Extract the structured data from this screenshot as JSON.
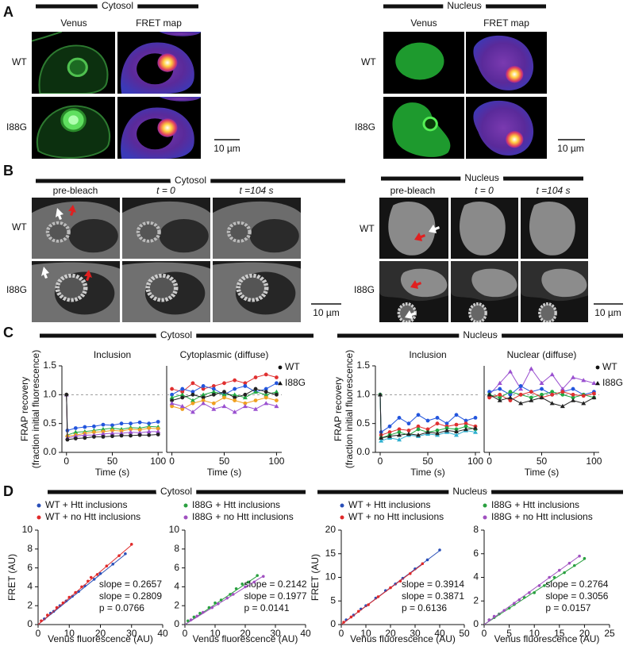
{
  "panel_labels": [
    "A",
    "B",
    "C",
    "D"
  ],
  "panel_a": {
    "cytosol": {
      "title": "Cytosol",
      "columns": [
        "Venus",
        "FRET map"
      ],
      "rows": [
        "WT",
        "I88G"
      ],
      "scale_bar": "10 µm"
    },
    "nucleus": {
      "title": "Nucleus",
      "columns": [
        "Venus",
        "FRET map"
      ],
      "rows": [
        "WT",
        "I88G"
      ],
      "scale_bar": "10 µm"
    }
  },
  "panel_b": {
    "cytosol": {
      "title": "Cytosol",
      "columns": [
        "pre-bleach",
        "t = 0",
        "t =104 s"
      ],
      "rows": [
        "WT",
        "I88G"
      ],
      "scale_bar": "10 µm"
    },
    "nucleus": {
      "title": "Nucleus",
      "columns": [
        "pre-bleach",
        "t = 0",
        "t =104 s"
      ],
      "rows": [
        "WT",
        "I88G"
      ],
      "scale_bar": "10 µm"
    }
  },
  "panel_c": {
    "cytosol_title": "Cytosol",
    "nucleus_title": "Nucleus"
  },
  "panel_d": {
    "cytosol_title": "Cytosol",
    "nucleus_title": "Nucleus"
  },
  "chart_data": [
    {
      "type": "line",
      "title": "Inclusion",
      "xlabel": "Time (s)",
      "ylabel": [
        "FRAP recovery",
        "(fraction initial fluorescence)"
      ],
      "x": [
        0,
        1,
        10,
        20,
        30,
        40,
        50,
        60,
        70,
        80,
        90,
        100
      ],
      "xlim": [
        -5,
        105
      ],
      "xticks": [
        0,
        50,
        100
      ],
      "ylim": [
        0,
        1.5
      ],
      "yticks": [
        {
          "value": 0,
          "label": "0.0"
        },
        {
          "value": 0.5,
          "label": "0.5"
        },
        {
          "value": 1,
          "label": "1.0"
        },
        {
          "value": 1.5,
          "label": "1.5"
        }
      ],
      "reference_line": 1,
      "series": [
        {
          "color": "#2255dd",
          "marker": "circle",
          "values": [
            1.0,
            0.38,
            0.42,
            0.44,
            0.45,
            0.48,
            0.47,
            0.5,
            0.5,
            0.52,
            0.5,
            0.53
          ]
        },
        {
          "color": "#22aa44",
          "marker": "triangle",
          "values": [
            1.0,
            0.3,
            0.35,
            0.36,
            0.38,
            0.4,
            0.42,
            0.4,
            0.43,
            0.42,
            0.45,
            0.44
          ]
        },
        {
          "color": "#f0a020",
          "marker": "circle",
          "values": [
            1.0,
            0.28,
            0.3,
            0.33,
            0.35,
            0.36,
            0.38,
            0.37,
            0.4,
            0.39,
            0.42,
            0.41
          ]
        },
        {
          "color": "#9a50d0",
          "marker": "triangle",
          "values": [
            1.0,
            0.25,
            0.28,
            0.3,
            0.3,
            0.32,
            0.33,
            0.33,
            0.35,
            0.34,
            0.36,
            0.36
          ]
        },
        {
          "color": "#222222",
          "marker": "circle",
          "values": [
            1.0,
            0.22,
            0.24,
            0.25,
            0.27,
            0.27,
            0.28,
            0.29,
            0.29,
            0.3,
            0.3,
            0.31
          ]
        }
      ]
    },
    {
      "type": "line",
      "title": "Cytoplasmic (diffuse)",
      "xlabel": "Time (s)",
      "x": [
        0,
        10,
        20,
        30,
        40,
        50,
        60,
        70,
        80,
        90,
        100
      ],
      "xlim": [
        -5,
        105
      ],
      "xticks": [
        0,
        50,
        100
      ],
      "ylim": [
        0,
        1.5
      ],
      "reference_line": 1,
      "marker_legend": [
        {
          "marker": "circle",
          "label": "WT"
        },
        {
          "marker": "triangle",
          "label": "I88G"
        }
      ],
      "series": [
        {
          "color": "#e03030",
          "marker": "circle",
          "values": [
            1.1,
            1.05,
            1.2,
            1.1,
            1.15,
            1.2,
            1.25,
            1.2,
            1.3,
            1.35,
            1.3
          ]
        },
        {
          "color": "#2255dd",
          "marker": "circle",
          "values": [
            1.0,
            1.1,
            1.05,
            1.15,
            1.1,
            1.0,
            1.1,
            1.15,
            1.05,
            1.1,
            1.2
          ]
        },
        {
          "color": "#22aa44",
          "marker": "triangle",
          "values": [
            0.95,
            1.0,
            0.9,
            1.0,
            1.05,
            1.0,
            1.0,
            0.95,
            1.05,
            1.0,
            1.05
          ]
        },
        {
          "color": "#222222",
          "marker": "circle",
          "values": [
            0.9,
            0.95,
            1.0,
            0.95,
            1.0,
            1.05,
            0.95,
            1.0,
            1.1,
            1.05,
            1.0
          ]
        },
        {
          "color": "#f0a020",
          "marker": "circle",
          "values": [
            0.8,
            0.75,
            0.85,
            0.9,
            0.85,
            0.95,
            0.9,
            0.85,
            0.9,
            0.95,
            0.9
          ]
        },
        {
          "color": "#9a50d0",
          "marker": "triangle",
          "values": [
            0.85,
            0.8,
            0.7,
            0.85,
            0.75,
            0.8,
            0.7,
            0.8,
            0.75,
            0.85,
            0.8
          ]
        }
      ]
    },
    {
      "type": "line",
      "title": "Inclusion",
      "xlabel": "Time (s)",
      "ylabel": [
        "FRAP recovery",
        "(fraction initial fluorescence)"
      ],
      "x": [
        0,
        1,
        10,
        20,
        30,
        40,
        50,
        60,
        70,
        80,
        90,
        100
      ],
      "xlim": [
        -5,
        105
      ],
      "xticks": [
        0,
        50,
        100
      ],
      "ylim": [
        0,
        1.5
      ],
      "yticks": [
        {
          "value": 0,
          "label": "0.0"
        },
        {
          "value": 0.5,
          "label": "0.5"
        },
        {
          "value": 1,
          "label": "1.0"
        },
        {
          "value": 1.5,
          "label": "1.5"
        }
      ],
      "reference_line": 1,
      "series": [
        {
          "color": "#2255dd",
          "marker": "circle",
          "values": [
            1.0,
            0.35,
            0.45,
            0.6,
            0.5,
            0.65,
            0.55,
            0.6,
            0.5,
            0.65,
            0.55,
            0.6
          ]
        },
        {
          "color": "#e03030",
          "marker": "circle",
          "values": [
            1.0,
            0.3,
            0.35,
            0.4,
            0.38,
            0.45,
            0.4,
            0.5,
            0.45,
            0.48,
            0.5,
            0.45
          ]
        },
        {
          "color": "#22aa44",
          "marker": "circle",
          "values": [
            1.0,
            0.25,
            0.3,
            0.35,
            0.3,
            0.4,
            0.35,
            0.38,
            0.42,
            0.4,
            0.45,
            0.4
          ]
        },
        {
          "color": "#30b0d0",
          "marker": "triangle",
          "values": [
            1.0,
            0.2,
            0.25,
            0.22,
            0.3,
            0.28,
            0.32,
            0.3,
            0.35,
            0.3,
            0.38,
            0.35
          ]
        },
        {
          "color": "#222222",
          "marker": "triangle",
          "values": [
            1.0,
            0.25,
            0.28,
            0.3,
            0.32,
            0.3,
            0.35,
            0.33,
            0.38,
            0.36,
            0.4,
            0.42
          ]
        }
      ]
    },
    {
      "type": "line",
      "title": "Nuclear (diffuse)",
      "xlabel": "Time (s)",
      "x": [
        0,
        10,
        20,
        30,
        40,
        50,
        60,
        70,
        80,
        90,
        100
      ],
      "xlim": [
        -5,
        105
      ],
      "xticks": [
        0,
        50,
        100
      ],
      "ylim": [
        0,
        1.5
      ],
      "reference_line": 1,
      "marker_legend": [
        {
          "marker": "circle",
          "label": "WT"
        },
        {
          "marker": "triangle",
          "label": "I88G"
        }
      ],
      "series": [
        {
          "color": "#9a50d0",
          "marker": "triangle",
          "values": [
            1.0,
            1.2,
            1.4,
            1.1,
            1.45,
            1.2,
            1.35,
            1.1,
            1.3,
            1.25,
            1.2
          ]
        },
        {
          "color": "#2255dd",
          "marker": "circle",
          "values": [
            1.05,
            1.1,
            1.0,
            1.15,
            1.05,
            1.1,
            1.0,
            1.05,
            1.1,
            1.0,
            1.05
          ]
        },
        {
          "color": "#22aa44",
          "marker": "circle",
          "values": [
            1.0,
            0.95,
            1.05,
            1.0,
            0.95,
            1.0,
            1.05,
            1.0,
            0.95,
            1.0,
            0.95
          ]
        },
        {
          "color": "#e03030",
          "marker": "circle",
          "values": [
            0.95,
            1.0,
            0.9,
            1.0,
            1.05,
            0.95,
            1.0,
            1.05,
            1.0,
            0.98,
            1.02
          ]
        },
        {
          "color": "#222222",
          "marker": "triangle",
          "values": [
            1.0,
            0.9,
            0.95,
            0.85,
            0.9,
            0.95,
            0.85,
            0.8,
            0.9,
            0.85,
            0.95
          ]
        }
      ]
    },
    {
      "type": "scatter",
      "xlabel": "Venus fluorescence (AU)",
      "ylabel": "FRET (AU)",
      "xlim": [
        0,
        40
      ],
      "xticks": [
        0,
        10,
        20,
        30,
        40
      ],
      "ylim": [
        0,
        10
      ],
      "yticks": [
        0,
        2,
        4,
        6,
        8,
        10
      ],
      "p": 0.0766,
      "p_label": "p = 0.0766",
      "series": [
        {
          "name": "WT + Htt inclusions",
          "color": "#2a4fb8",
          "slope": 0.2657,
          "slope_label": "slope = 0.2657",
          "x": [
            2,
            4,
            5,
            7,
            9,
            11,
            13,
            15,
            18,
            20,
            24,
            28
          ],
          "y": [
            0.6,
            1.2,
            1.4,
            2.0,
            2.5,
            3.0,
            3.5,
            4.1,
            4.8,
            5.4,
            6.4,
            7.5
          ]
        },
        {
          "name": "WT + no Htt inclusions",
          "color": "#e02a2a",
          "slope": 0.2809,
          "slope_label": "slope = 0.2809",
          "x": [
            1,
            3,
            6,
            8,
            10,
            12,
            14,
            16,
            17,
            19,
            22,
            26,
            30
          ],
          "y": [
            0.4,
            1.0,
            1.8,
            2.3,
            2.9,
            3.4,
            4.0,
            4.6,
            5.0,
            5.3,
            6.2,
            7.3,
            8.5
          ]
        }
      ]
    },
    {
      "type": "scatter",
      "xlabel": "Venus fluorescence (AU)",
      "xlim": [
        0,
        40
      ],
      "xticks": [
        0,
        10,
        20,
        30,
        40
      ],
      "ylim": [
        0,
        10
      ],
      "yticks": [
        0,
        2,
        4,
        6,
        8,
        10
      ],
      "p": 0.0141,
      "p_label": "p = 0.0141",
      "series": [
        {
          "name": "I88G + Htt inclusions",
          "color": "#2aa040",
          "slope": 0.2142,
          "slope_label": "slope = 0.2142",
          "x": [
            1,
            3,
            5,
            8,
            10,
            12,
            15,
            17,
            19,
            21,
            24
          ],
          "y": [
            0.4,
            0.8,
            1.2,
            1.8,
            2.3,
            2.6,
            3.2,
            3.8,
            4.3,
            4.5,
            5.2
          ]
        },
        {
          "name": "I88G + no Htt inclusions",
          "color": "#a050c0",
          "slope": 0.1977,
          "slope_label": "slope = 0.1977",
          "x": [
            2,
            4,
            6,
            9,
            11,
            14,
            16,
            20,
            23,
            26
          ],
          "y": [
            0.5,
            0.9,
            1.3,
            1.8,
            2.2,
            2.8,
            3.2,
            4.0,
            4.5,
            5.1
          ]
        }
      ]
    },
    {
      "type": "scatter",
      "xlabel": "Venus fluorescence (AU)",
      "ylabel": "FRET (AU)",
      "xlim": [
        0,
        50
      ],
      "xticks": [
        0,
        10,
        20,
        30,
        40,
        50
      ],
      "ylim": [
        0,
        20
      ],
      "yticks": [
        0,
        5,
        10,
        15,
        20
      ],
      "p": 0.6136,
      "p_label": "p = 0.6136",
      "series": [
        {
          "name": "WT + Htt inclusions",
          "color": "#2a4fb8",
          "slope": 0.3914,
          "slope_label": "slope = 0.3914",
          "x": [
            2,
            5,
            8,
            10,
            14,
            18,
            22,
            25,
            30,
            35,
            40
          ],
          "y": [
            1.0,
            2.0,
            3.3,
            4.0,
            5.6,
            7.2,
            8.6,
            9.8,
            11.8,
            13.7,
            15.8
          ]
        },
        {
          "name": "WT + no Htt inclusions",
          "color": "#e02a2a",
          "slope": 0.3871,
          "slope_label": "slope = 0.3871",
          "x": [
            1,
            4,
            7,
            11,
            15,
            20,
            24,
            28,
            33
          ],
          "y": [
            0.5,
            1.6,
            2.8,
            4.2,
            5.9,
            7.8,
            9.2,
            10.8,
            12.9
          ]
        }
      ]
    },
    {
      "type": "scatter",
      "xlabel": "Venus fluorescence (AU)",
      "xlim": [
        0,
        25
      ],
      "xticks": [
        0,
        5,
        10,
        15,
        20,
        25
      ],
      "ylim": [
        0,
        8
      ],
      "yticks": [
        0,
        2,
        4,
        6,
        8
      ],
      "p": 0.0157,
      "p_label": "p = 0.0157",
      "series": [
        {
          "name": "I88G + Htt inclusions",
          "color": "#2aa040",
          "slope": 0.2764,
          "slope_label": "slope = 0.2764",
          "x": [
            1,
            2,
            3,
            5,
            6,
            8,
            10,
            12,
            14,
            16,
            18,
            20
          ],
          "y": [
            0.4,
            0.6,
            0.9,
            1.4,
            1.7,
            2.3,
            2.7,
            3.3,
            4.0,
            4.4,
            5.0,
            5.6
          ]
        },
        {
          "name": "I88G + no Htt inclusions",
          "color": "#a050c0",
          "slope": 0.3056,
          "slope_label": "slope = 0.3056",
          "x": [
            1,
            2,
            4,
            6,
            7,
            9,
            11,
            13,
            15,
            17,
            19
          ],
          "y": [
            0.4,
            0.7,
            1.2,
            1.8,
            2.1,
            2.7,
            3.3,
            4.0,
            4.6,
            5.2,
            5.8
          ]
        }
      ]
    }
  ]
}
